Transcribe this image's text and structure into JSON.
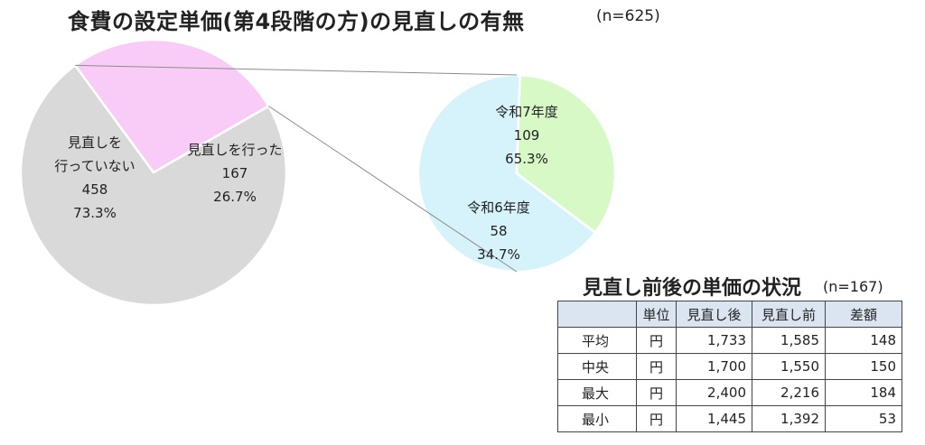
{
  "title": "食費の設定単価(第4段階の方)の見直しの有無",
  "title_n": "(n=625)",
  "chart_data": [
    {
      "type": "pie",
      "slices": [
        {
          "label_lines": [
            "見直しを",
            "行っていない"
          ],
          "count": "458",
          "percent": "73.3%",
          "value": 458,
          "color": "#d9d9d9"
        },
        {
          "label_lines": [
            "見直しを行った"
          ],
          "count": "167",
          "percent": "26.7%",
          "value": 167,
          "color": "#f9ccf7"
        }
      ]
    },
    {
      "type": "pie",
      "slices": [
        {
          "label_lines": [
            "令和7年度"
          ],
          "count": "109",
          "percent": "65.3%",
          "value": 109,
          "color": "#d6f3fb"
        },
        {
          "label_lines": [
            "令和6年度"
          ],
          "count": "58",
          "percent": "34.7%",
          "value": 58,
          "color": "#d6f9c6"
        }
      ]
    }
  ],
  "table": {
    "title": "見直し前後の単価の状況",
    "n": "(n=167)",
    "headers": [
      "",
      "単位",
      "見直し後",
      "見直し前",
      "差額"
    ],
    "rows": [
      [
        "平均",
        "円",
        "1,733",
        "1,585",
        "148"
      ],
      [
        "中央",
        "円",
        "1,700",
        "1,550",
        "150"
      ],
      [
        "最大",
        "円",
        "2,400",
        "2,216",
        "184"
      ],
      [
        "最小",
        "円",
        "1,445",
        "1,392",
        "53"
      ]
    ]
  }
}
